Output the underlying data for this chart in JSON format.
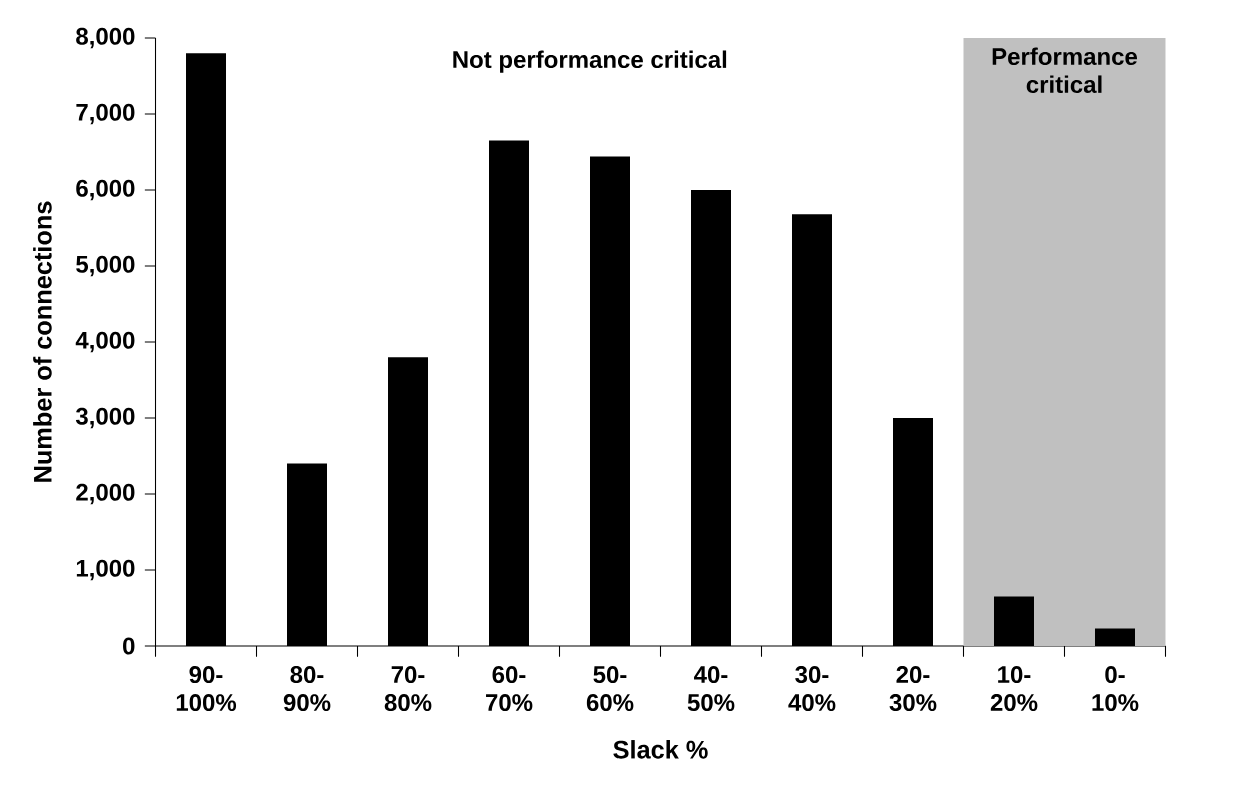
{
  "chart_data": {
    "type": "bar",
    "xlabel": "Slack %",
    "ylabel": "Number of connections",
    "categories": [
      "90-100%",
      "80-90%",
      "70-80%",
      "60-70%",
      "50-60%",
      "40-50%",
      "30-40%",
      "20-30%",
      "10-20%",
      "0-10%"
    ],
    "values": [
      7800,
      2400,
      3800,
      6650,
      6440,
      6000,
      5680,
      3000,
      650,
      230
    ],
    "color": "#000000",
    "ylim": [
      0,
      8000
    ],
    "yticks": [
      0,
      {
        "value": 1000,
        "label": "1,000"
      },
      {
        "value": 2000,
        "label": "2,000"
      },
      {
        "value": 3000,
        "label": "3,000"
      },
      {
        "value": 4000,
        "label": "4,000"
      },
      {
        "value": 5000,
        "label": "5,000"
      },
      {
        "value": 6000,
        "label": "6,000"
      },
      {
        "value": 7000,
        "label": "7,000"
      },
      {
        "value": 8000,
        "label": "8,000"
      }
    ],
    "bands": [
      {
        "axis": "x",
        "from": "10-20%",
        "to": "0-10%",
        "label": "Performance critical",
        "color": "#c0c0c0"
      }
    ],
    "annotations": [
      "Not performance critical"
    ]
  }
}
